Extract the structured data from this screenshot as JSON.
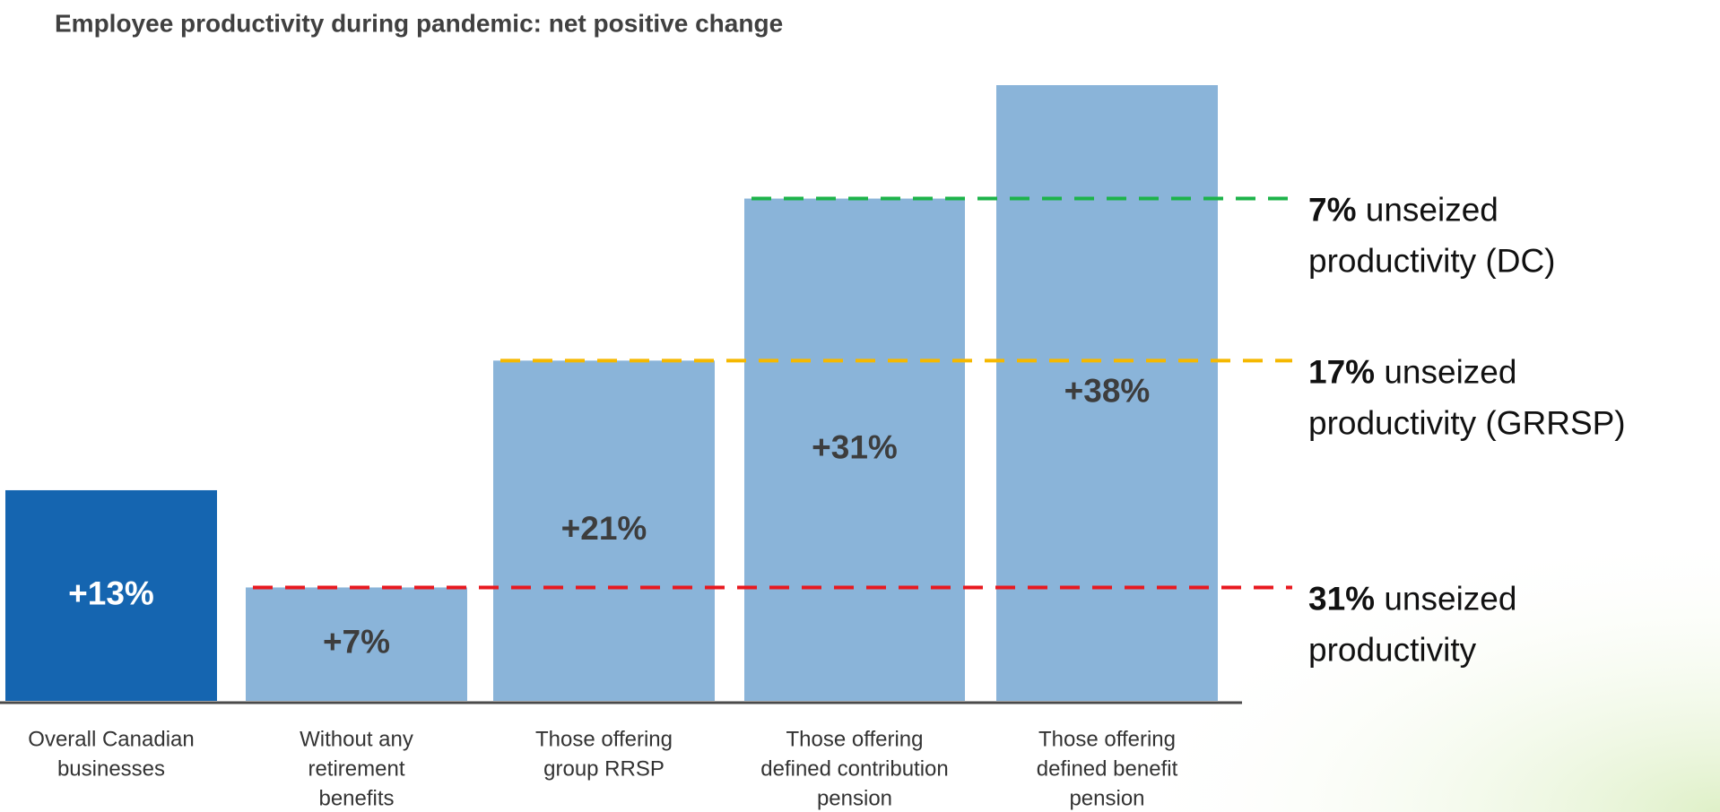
{
  "chart_data": {
    "type": "bar",
    "title": "Employee productivity during pandemic: net positive change",
    "categories": [
      [
        "Overall Canadian",
        "businesses"
      ],
      [
        "Without any",
        "retirement",
        "benefits"
      ],
      [
        "Those offering",
        "group RRSP"
      ],
      [
        "Those offering",
        "defined contribution",
        "pension"
      ],
      [
        "Those offering",
        "defined benefit",
        "pension"
      ]
    ],
    "values": [
      13,
      7,
      21,
      31,
      38
    ],
    "value_labels": [
      "+13%",
      "+7%",
      "+21%",
      "+31%",
      "+38%"
    ],
    "colors": [
      "#1565b0",
      "#8ab4d9",
      "#8ab4d9",
      "#8ab4d9",
      "#8ab4d9"
    ],
    "label_colors": [
      "#ffffff",
      "#3d3d3d",
      "#3d3d3d",
      "#3d3d3d",
      "#3d3d3d"
    ],
    "reference_lines": [
      {
        "value": 31,
        "color": "#1db34a",
        "bold": "7%",
        "text": [
          "unseized",
          "productivity (DC)"
        ]
      },
      {
        "value": 21,
        "color": "#f5b800",
        "bold": "17%",
        "text": [
          "unseized",
          "productivity (GRRSP)"
        ]
      },
      {
        "value": 7,
        "color": "#e8191f",
        "bold": "31%",
        "text": [
          "unseized",
          "productivity"
        ]
      }
    ]
  }
}
